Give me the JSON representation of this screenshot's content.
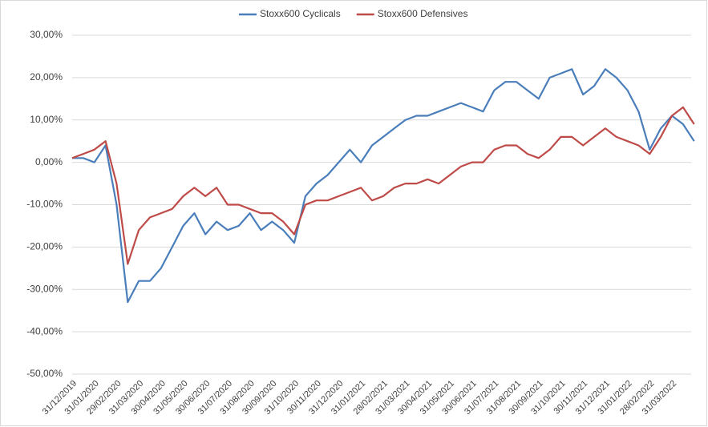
{
  "chart_data": {
    "type": "line",
    "categories": [
      "31/12/2019",
      null,
      "31/01/2020",
      null,
      "29/02/2020",
      null,
      "31/03/2020",
      null,
      "30/04/2020",
      null,
      "31/05/2020",
      null,
      "30/06/2020",
      null,
      "31/07/2020",
      null,
      "31/08/2020",
      null,
      "30/09/2020",
      null,
      "31/10/2020",
      null,
      "30/11/2020",
      null,
      "31/12/2020",
      null,
      "31/01/2021",
      null,
      "28/02/2021",
      null,
      "31/03/2021",
      null,
      "30/04/2021",
      null,
      "31/05/2021",
      null,
      "30/06/2021",
      null,
      "31/07/2021",
      null,
      "31/08/2021",
      null,
      "30/09/2021",
      null,
      "31/10/2021",
      null,
      "30/11/2021",
      null,
      "31/12/2021",
      null,
      "31/01/2022",
      null,
      "28/02/2022",
      null,
      "31/03/2022",
      null,
      null
    ],
    "series": [
      {
        "name": "Stoxx600 Cyclicals",
        "color": "#4a7ebb",
        "values": [
          1,
          1,
          0,
          4,
          -10,
          -33,
          -28,
          -28,
          -25,
          -20,
          -15,
          -12,
          -17,
          -14,
          -16,
          -15,
          -12,
          -16,
          -14,
          -16,
          -19,
          -8,
          -5,
          -3,
          0,
          3,
          0,
          4,
          6,
          8,
          10,
          11,
          11,
          12,
          13,
          14,
          13,
          12,
          17,
          19,
          19,
          17,
          15,
          20,
          21,
          22,
          16,
          18,
          22,
          20,
          17,
          12,
          3,
          8,
          11,
          9,
          5
        ]
      },
      {
        "name": "Stoxx600 Defensives",
        "color": "#be4b48",
        "values": [
          1,
          2,
          3,
          5,
          -5,
          -24,
          -16,
          -13,
          -12,
          -11,
          -8,
          -6,
          -8,
          -6,
          -10,
          -10,
          -11,
          -12,
          -12,
          -14,
          -17,
          -10,
          -9,
          -9,
          -8,
          -7,
          -6,
          -9,
          -8,
          -6,
          -5,
          -5,
          -4,
          -5,
          -3,
          -1,
          0,
          0,
          3,
          4,
          4,
          2,
          1,
          3,
          6,
          6,
          4,
          6,
          8,
          6,
          5,
          4,
          2,
          6,
          11,
          13,
          9
        ]
      }
    ],
    "ylim": [
      -50,
      30
    ],
    "yticks": [
      {
        "value": 30,
        "label": "30,00%"
      },
      {
        "value": 20,
        "label": "20,00%"
      },
      {
        "value": 10,
        "label": "10,00%"
      },
      {
        "value": 0,
        "label": "0,00%"
      },
      {
        "value": -10,
        "label": "-10,00%"
      },
      {
        "value": -20,
        "label": "-20,00%"
      },
      {
        "value": -30,
        "label": "-30,00%"
      },
      {
        "value": -40,
        "label": "-40,00%"
      },
      {
        "value": -50,
        "label": "-50,00%"
      }
    ],
    "grid": true,
    "legend": "top"
  }
}
